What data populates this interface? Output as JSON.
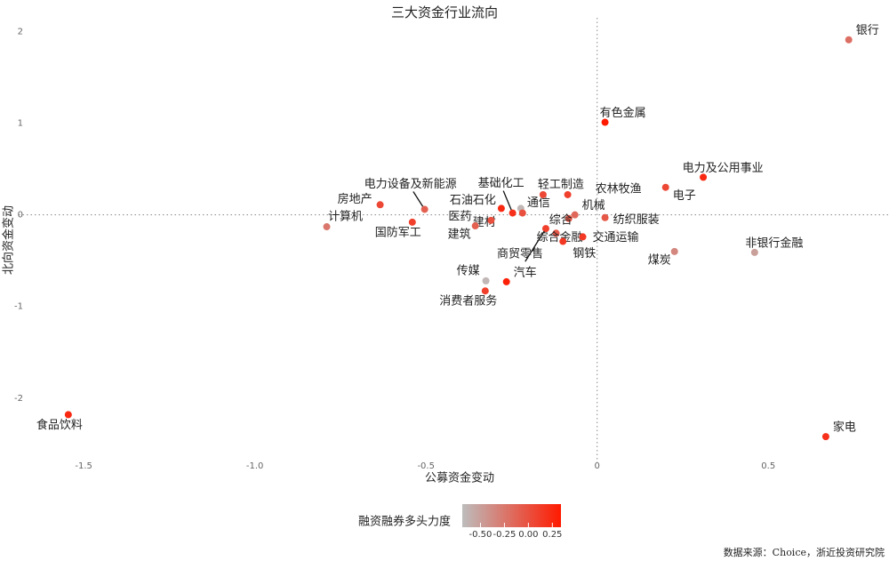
{
  "chart_data": {
    "type": "scatter",
    "title": "三大资金行业流向",
    "x_label": "公募资金变动",
    "y_label": "北向资金变动",
    "labels": [
      "银行",
      "有色金属",
      "电力及公用事业",
      "电子",
      "非银行金融",
      "煤炭",
      "家电",
      "食品饮料",
      "计算机",
      "房地产",
      "电力设备及新能源",
      "国防军工",
      "石油石化",
      "基础化工",
      "通信",
      "建材",
      "医药",
      "建筑",
      "轻工制造",
      "农林牧渔",
      "机械",
      "综合",
      "纺织服装",
      "商贸零售",
      "综合金融",
      "钢铁",
      "交通运输",
      "传媒",
      "汽车",
      "消费者服务"
    ],
    "x": [
      0.735,
      0.023,
      0.31,
      0.2,
      0.46,
      0.226,
      0.668,
      -1.545,
      -0.79,
      -0.634,
      -0.504,
      -0.54,
      -0.28,
      -0.247,
      -0.223,
      -0.218,
      -0.31,
      -0.356,
      -0.158,
      -0.086,
      -0.065,
      -0.083,
      0.023,
      -0.15,
      -0.12,
      -0.1,
      -0.042,
      -0.325,
      -0.265,
      -0.327
    ],
    "y": [
      1.91,
      1.01,
      0.41,
      0.3,
      -0.41,
      -0.4,
      -2.42,
      -2.18,
      -0.13,
      0.11,
      0.06,
      -0.08,
      0.07,
      0.02,
      0.07,
      0.02,
      -0.06,
      -0.12,
      0.22,
      0.22,
      0.0,
      -0.04,
      -0.03,
      -0.15,
      -0.2,
      -0.29,
      -0.24,
      -0.72,
      -0.73,
      -0.83
    ],
    "color_values": [
      -0.2,
      0.34,
      0.25,
      0.05,
      -0.5,
      -0.35,
      0.2,
      0.25,
      -0.25,
      0.05,
      -0.1,
      0.1,
      0.25,
      0.2,
      -0.65,
      0.0,
      0.0,
      -0.1,
      0.05,
      0.1,
      -0.15,
      -0.05,
      -0.05,
      0.1,
      -0.05,
      0.15,
      0.15,
      -0.65,
      0.3,
      0.1
    ],
    "color_label": "融资融券多头力度",
    "colormap": [
      "#bdbdbd",
      "#ff1a00"
    ],
    "color_lim": [
      -0.69,
      0.34
    ],
    "color_ticks": [
      {
        "value": -0.5,
        "label": "-0.50"
      },
      {
        "value": -0.25,
        "label": "-0.25"
      },
      {
        "value": 0,
        "label": "0.00"
      },
      {
        "value": 0.25,
        "label": "0.25"
      }
    ],
    "xlim": [
      -1.69,
      0.85
    ],
    "ylim": [
      -2.7,
      2.15
    ],
    "xticks": [
      -1.5,
      {
        "value": -1,
        "label": "-1.0"
      },
      -0.5,
      {
        "value": 0,
        "label": "0"
      },
      0.5
    ],
    "yticks": [
      -2,
      -1,
      0,
      1,
      2
    ],
    "grid": false,
    "source": "数据来源：Choice，浙近投资研究院"
  }
}
